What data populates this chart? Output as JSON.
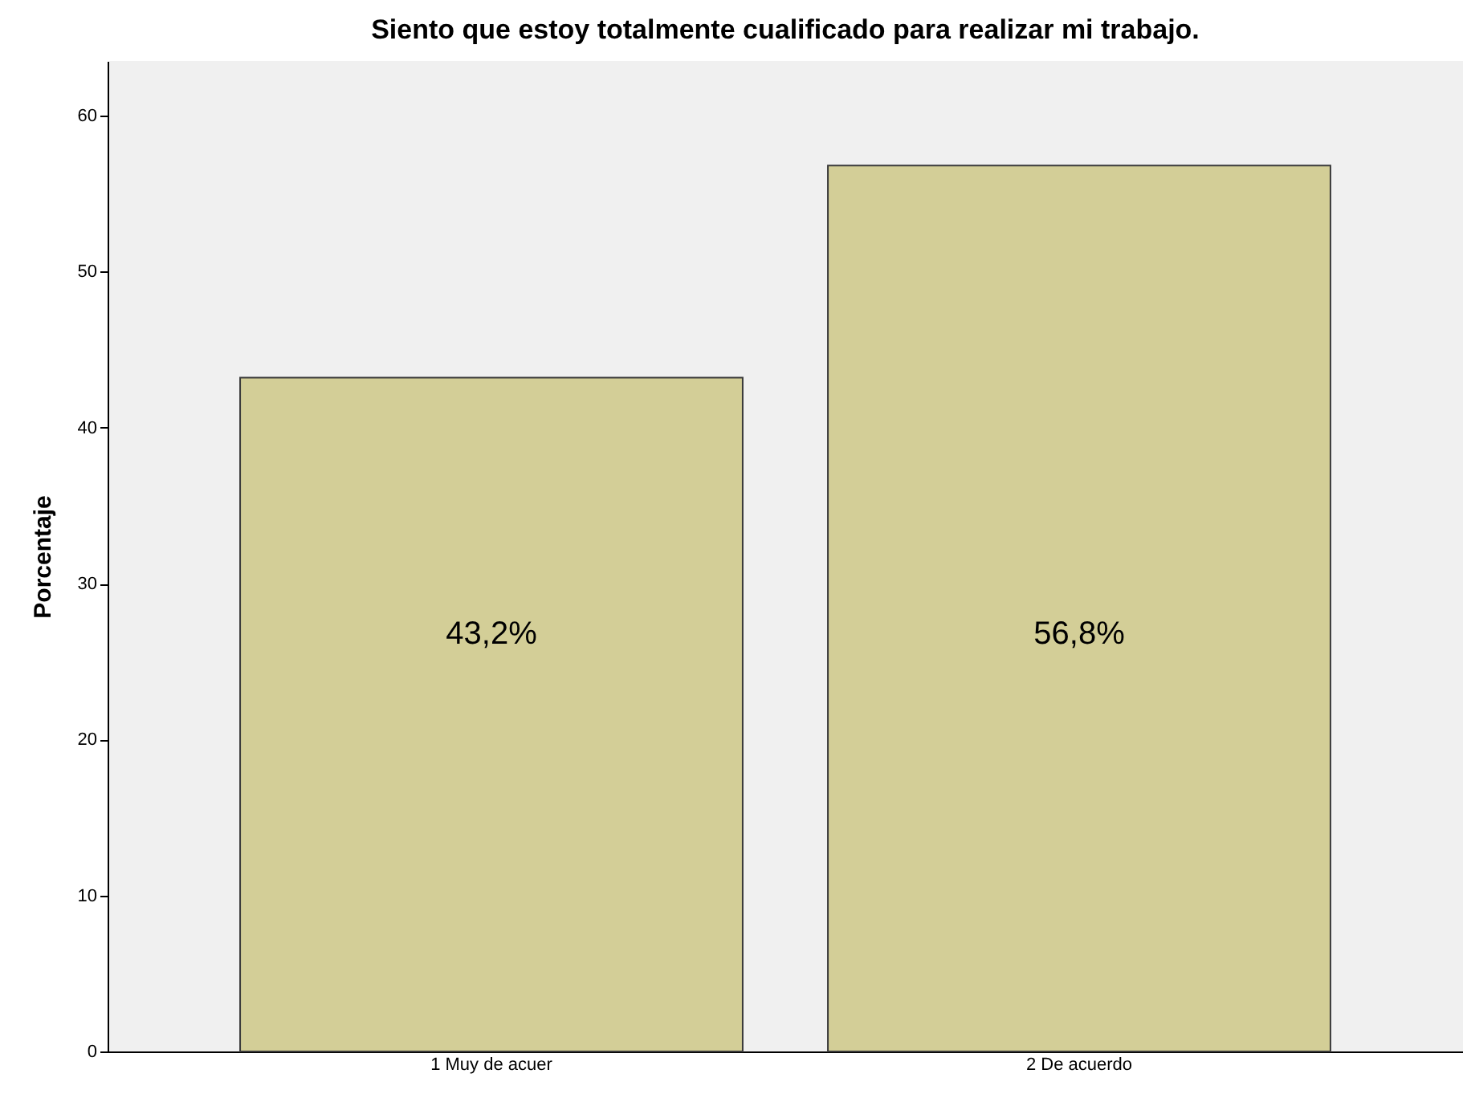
{
  "chart_data": {
    "type": "bar",
    "title": "Siento que estoy totalmente cualificado para realizar mi trabajo.",
    "ylabel": "Porcentaje",
    "categories": [
      "1 Muy de acuer",
      "2 De acuerdo"
    ],
    "values": [
      43.2,
      56.8
    ],
    "value_labels": [
      "43,2%",
      "56,8%"
    ],
    "color": "#d3ce97",
    "ylim": [
      0,
      63.5
    ],
    "yticks": [
      0,
      10,
      20,
      30,
      40,
      50,
      60
    ],
    "grid": false
  }
}
